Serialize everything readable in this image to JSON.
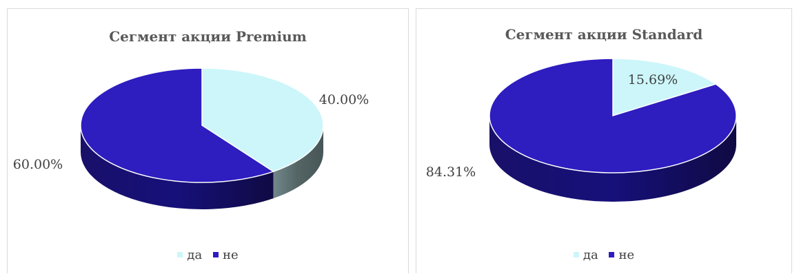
{
  "chart_data": [
    {
      "type": "pie",
      "title": "Сегмент акции Premium",
      "slices": [
        {
          "label": "да",
          "value": 40.0,
          "display": "40.00%",
          "color": "#CCF6FA"
        },
        {
          "label": "не",
          "value": 60.0,
          "display": "60.00%",
          "color": "#2E1DBF"
        }
      ],
      "legend": [
        "да",
        "не"
      ],
      "legend_position": "bottom",
      "three_d": true
    },
    {
      "type": "pie",
      "title": "Сегмент акции Standard",
      "slices": [
        {
          "label": "да",
          "value": 15.69,
          "display": "15.69%",
          "color": "#CCF6FA"
        },
        {
          "label": "не",
          "value": 84.31,
          "display": "84.31%",
          "color": "#2E1DBF"
        }
      ],
      "legend": [
        "да",
        "не"
      ],
      "legend_position": "bottom",
      "three_d": true
    }
  ]
}
